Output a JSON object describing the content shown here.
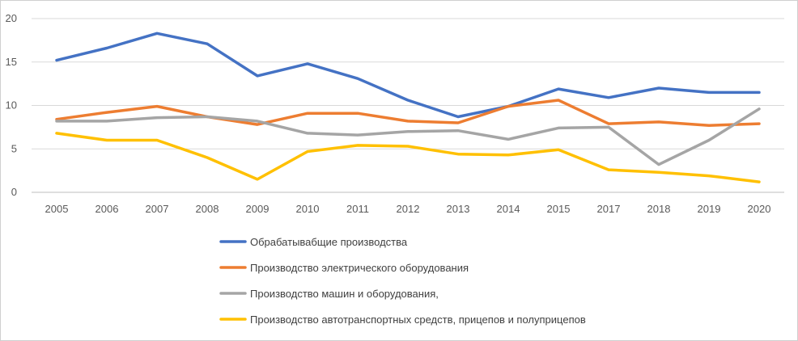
{
  "chart_data": {
    "type": "line",
    "title": "",
    "xlabel": "",
    "ylabel": "",
    "categories": [
      "2005",
      "2006",
      "2007",
      "2008",
      "2009",
      "2010",
      "2011",
      "2012",
      "2013",
      "2014",
      "2015",
      "2017",
      "2018",
      "2019",
      "2020"
    ],
    "ylim": [
      0,
      20
    ],
    "yticks": [
      0,
      5,
      10,
      15,
      20
    ],
    "grid": true,
    "legend_position": "bottom",
    "series": [
      {
        "name": "Обрабатывабщие производства",
        "color": "#4472C4",
        "values": [
          15.2,
          16.6,
          18.3,
          17.1,
          13.4,
          14.8,
          13.1,
          10.6,
          8.7,
          9.9,
          11.9,
          10.9,
          12.0,
          11.5,
          11.5
        ]
      },
      {
        "name": "Производство электрического оборудования",
        "color": "#ED7D31",
        "values": [
          8.4,
          9.2,
          9.9,
          8.7,
          7.8,
          9.1,
          9.1,
          8.2,
          8.0,
          9.9,
          10.6,
          7.9,
          8.1,
          7.7,
          7.9
        ]
      },
      {
        "name": "Производство машин и оборудования,",
        "color": "#A5A5A5",
        "values": [
          8.2,
          8.2,
          8.6,
          8.7,
          8.2,
          6.8,
          6.6,
          7.0,
          7.1,
          6.1,
          7.4,
          7.5,
          3.2,
          6.0,
          9.6
        ]
      },
      {
        "name": "Производство автотранспортных средств, прицепов и полуприцепов",
        "color": "#FFC000",
        "values": [
          6.8,
          6.0,
          6.0,
          4.0,
          1.5,
          4.7,
          5.4,
          5.3,
          4.4,
          4.3,
          4.9,
          2.6,
          2.3,
          1.9,
          1.2
        ]
      }
    ]
  }
}
